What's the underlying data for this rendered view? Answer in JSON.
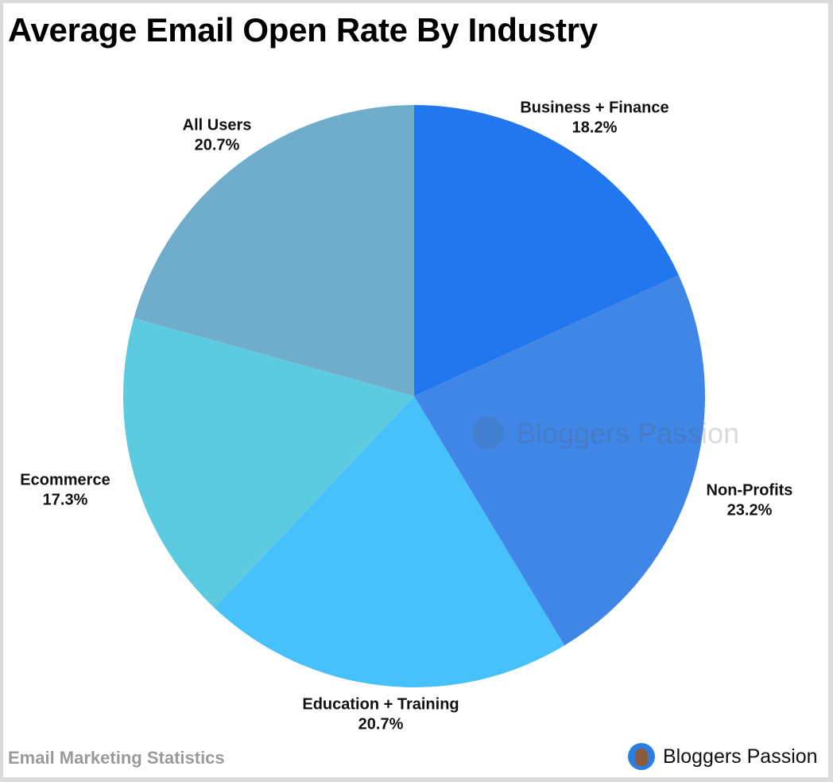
{
  "chart_data": {
    "type": "pie",
    "title": "Average Email Open Rate By Industry",
    "slices": [
      {
        "label": "Business + Finance",
        "value": 18.2,
        "value_label": "18.2%",
        "color": "#2277ee"
      },
      {
        "label": "Non-Profits",
        "value": 23.2,
        "value_label": "23.2%",
        "color": "#3f86e6"
      },
      {
        "label": "Education + Training",
        "value": 20.7,
        "value_label": "20.7%",
        "color": "#47c1fc"
      },
      {
        "label": "Ecommerce",
        "value": 17.3,
        "value_label": "17.3%",
        "color": "#5ccbdf"
      },
      {
        "label": "All Users",
        "value": 20.7,
        "value_label": "20.7%",
        "color": "#70adcb"
      }
    ],
    "start": "top",
    "direction": "clockwise",
    "legend": "none"
  },
  "footer": {
    "source": "Email Marketing Statistics",
    "brand": "Bloggers Passion"
  },
  "watermark": "Bloggers Passion"
}
